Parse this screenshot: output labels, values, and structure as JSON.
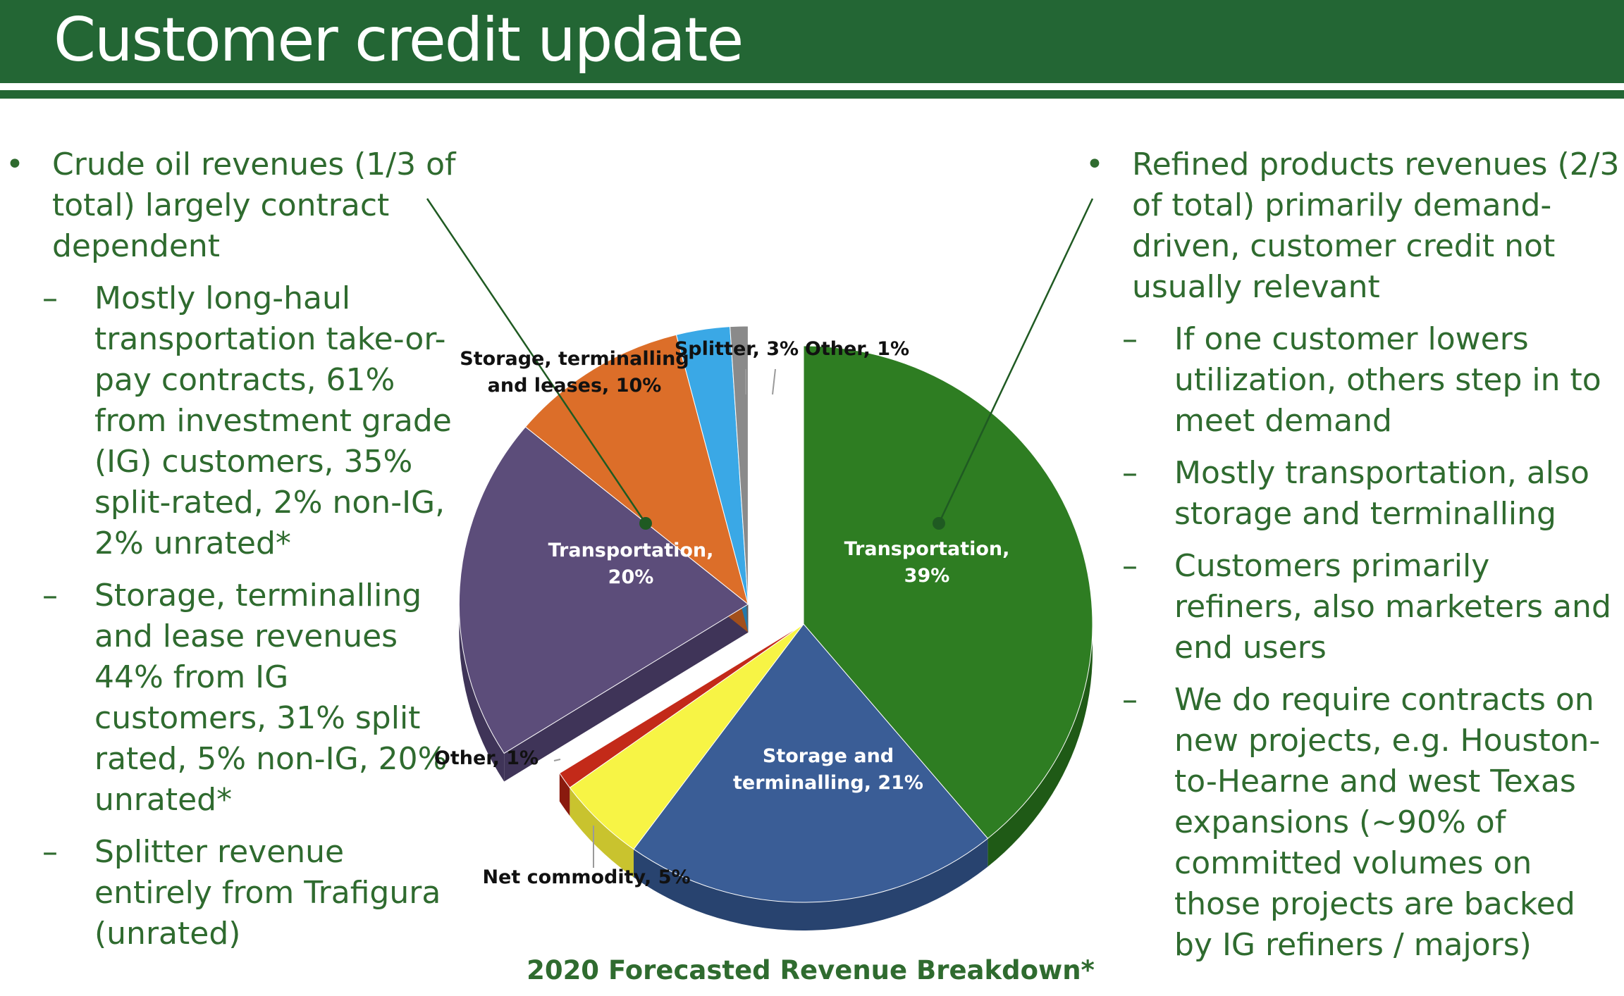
{
  "header": {
    "title": "Customer credit update"
  },
  "left_column": [
    {
      "level": 1,
      "text": "Crude oil revenues (1/3 of total) largely contract dependent"
    },
    {
      "level": 2,
      "text": "Mostly long-haul transportation take-or-pay contracts, 61% from investment grade (IG) customers, 35% split-rated, 2% non-IG, 2% unrated*"
    },
    {
      "level": 2,
      "text": "Storage, terminalling and lease revenues 44% from IG customers, 31% split rated, 5% non-IG, 20% unrated*"
    },
    {
      "level": 2,
      "text": "Splitter revenue entirely from Trafigura (unrated)"
    }
  ],
  "right_column": [
    {
      "level": 1,
      "text": "Refined products revenues (2/3 of total) primarily demand-driven, customer credit not usually relevant"
    },
    {
      "level": 2,
      "text": "If one customer lowers utilization, others step in to meet demand"
    },
    {
      "level": 2,
      "text": "Mostly transportation, also storage and terminalling"
    },
    {
      "level": 2,
      "text": "Customers primarily refiners, also marketers and end users"
    },
    {
      "level": 2,
      "text": "We do require contracts on new projects, e.g. Houston-to-Hearne and west Texas expansions (~90% of committed volumes on those projects are backed by IG refiners / majors)"
    }
  ],
  "chart_data": {
    "type": "pie",
    "title": "2020 Forecasted Revenue Breakdown*",
    "slices": [
      {
        "group": "Refined products",
        "label_lines": [
          "Transportation,",
          "39%"
        ],
        "value": 39,
        "color": "#2e7d22",
        "side": "#1f5a16",
        "label_color": "#ffffff"
      },
      {
        "group": "Refined products",
        "label_lines": [
          "Storage and",
          "terminalling, 21%"
        ],
        "value": 21,
        "color": "#3a5d96",
        "side": "#28436f",
        "label_color": "#ffffff"
      },
      {
        "group": "Refined products",
        "label_lines": [
          "Net commodity, 5%"
        ],
        "value": 5,
        "color": "#f7f445",
        "side": "#c9c32e",
        "label_color": "#111111"
      },
      {
        "group": "Refined products",
        "label_lines": [
          "Other, 1%"
        ],
        "value": 1,
        "color": "#c32a19",
        "side": "#8a1a0e",
        "label_color": "#111111"
      },
      {
        "group": "Crude oil",
        "label_lines": [
          "Transportation,",
          "20%"
        ],
        "value": 20,
        "color": "#5c4d7a",
        "side": "#3f3458",
        "label_color": "#ffffff"
      },
      {
        "group": "Crude oil",
        "label_lines": [
          "Storage, terminalling",
          "and leases, 10%"
        ],
        "value": 10,
        "color": "#dc6e29",
        "side": "#a24f1b",
        "label_color": "#111111"
      },
      {
        "group": "Crude oil",
        "label_lines": [
          "Splitter, 3%"
        ],
        "value": 3,
        "color": "#3aa8e6",
        "side": "#2479ab",
        "label_color": "#111111"
      },
      {
        "group": "Crude oil",
        "label_lines": [
          "Other, 1%"
        ],
        "value": 1,
        "color": "#8a8a8a",
        "side": "#5e5e5e",
        "label_color": "#111111"
      }
    ]
  },
  "colors": {
    "brand_green": "#236634",
    "text_green": "#2f6b2f"
  }
}
